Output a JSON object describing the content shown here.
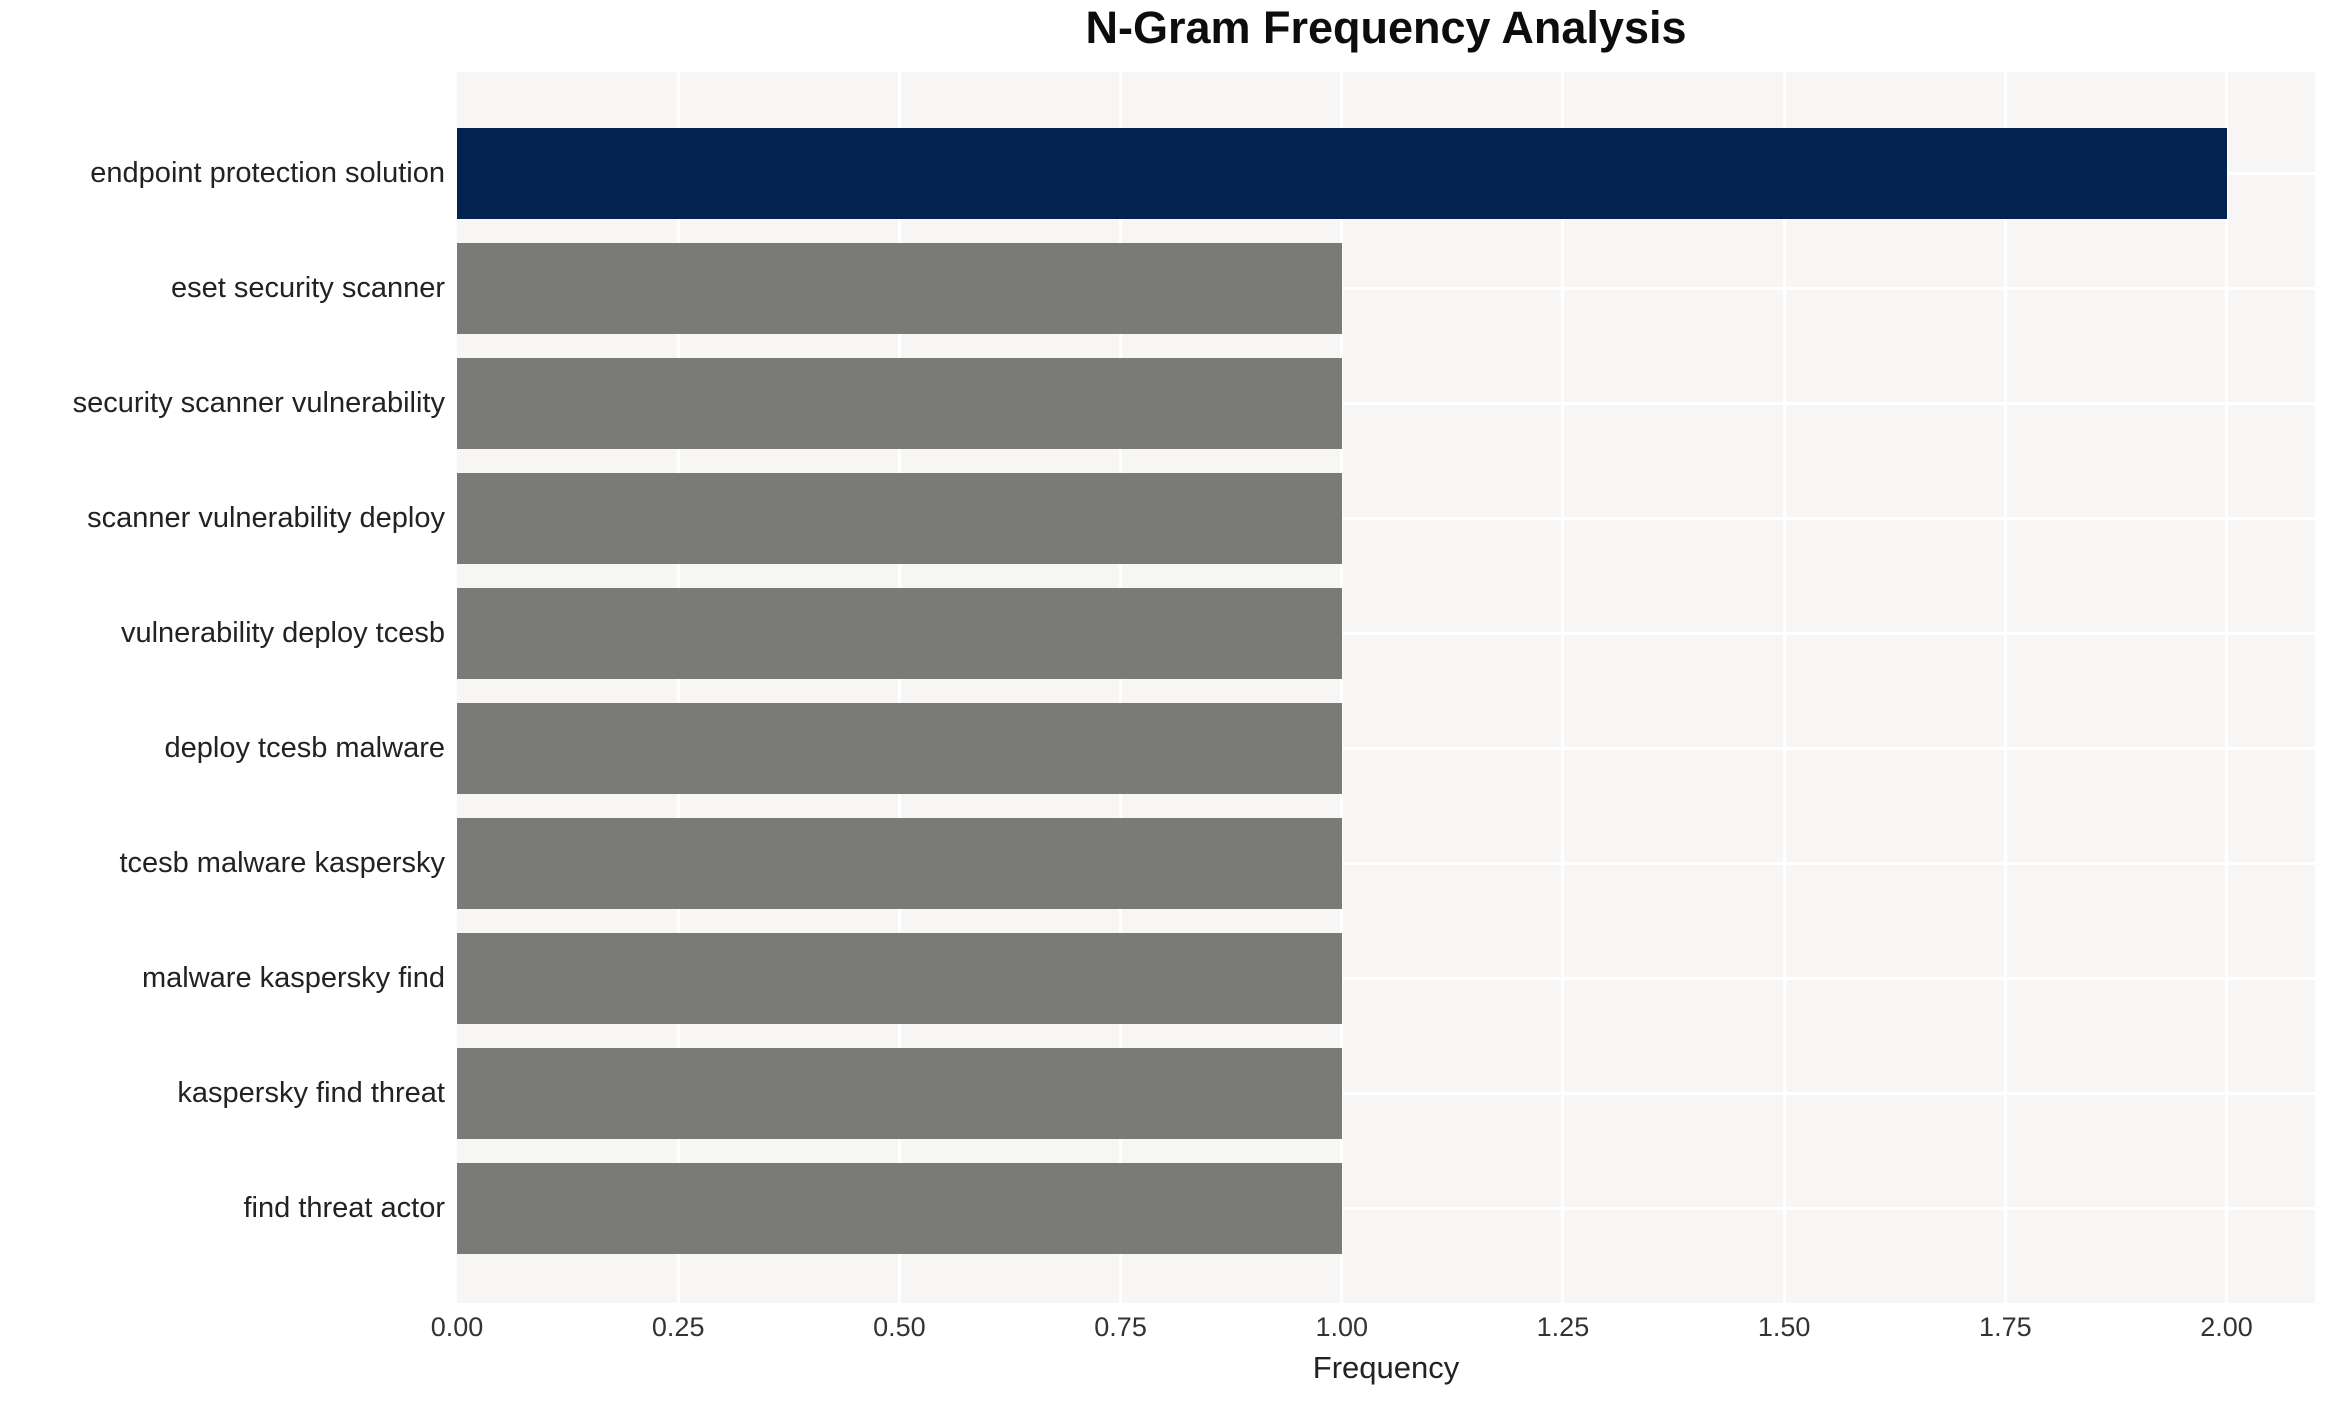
{
  "chart_data": {
    "type": "bar",
    "orientation": "horizontal",
    "title": "N-Gram Frequency Analysis",
    "xlabel": "Frequency",
    "ylabel": "",
    "categories": [
      "endpoint protection solution",
      "eset security scanner",
      "security scanner vulnerability",
      "scanner vulnerability deploy",
      "vulnerability deploy tcesb",
      "deploy tcesb malware",
      "tcesb malware kaspersky",
      "malware kaspersky find",
      "kaspersky find threat",
      "find threat actor"
    ],
    "values": [
      2,
      1,
      1,
      1,
      1,
      1,
      1,
      1,
      1,
      1
    ],
    "bar_colors": [
      "#022350",
      "#7a7a76",
      "#7a7a76",
      "#7a7a76",
      "#7a7a76",
      "#7a7a76",
      "#7a7a76",
      "#7a7a76",
      "#7a7a76",
      "#7a7a76"
    ],
    "xlim": [
      0,
      2.1
    ],
    "xticks": [
      0,
      0.25,
      0.5,
      0.75,
      1,
      1.25,
      1.5,
      1.75,
      2
    ],
    "xtick_labels": [
      "0.00",
      "0.25",
      "0.50",
      "0.75",
      "1.00",
      "1.25",
      "1.50",
      "1.75",
      "2.00"
    ],
    "grid": true,
    "gridline_color": "#ffffff",
    "plot_background": "#f7f6f5",
    "figure_background": "#ffffff",
    "highlight_color": "#022350",
    "default_bar_color": "#7a7a76",
    "legend": false
  }
}
